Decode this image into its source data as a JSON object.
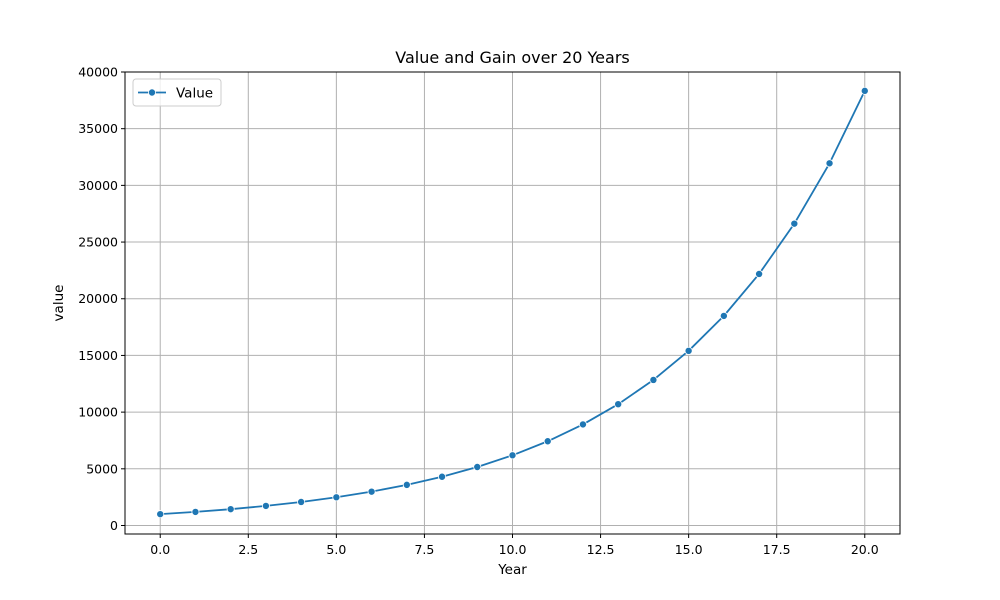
{
  "chart_data": {
    "type": "line",
    "title": "Value and Gain over 20 Years",
    "xlabel": "Year",
    "ylabel": "value",
    "xlim": [
      -1,
      21
    ],
    "ylim": [
      -750,
      40000
    ],
    "xticks": [
      0,
      2.5,
      5,
      7.5,
      10,
      12.5,
      15,
      17.5,
      20
    ],
    "xtick_labels": [
      "0.0",
      "2.5",
      "5.0",
      "7.5",
      "10.0",
      "12.5",
      "15.0",
      "17.5",
      "20.0"
    ],
    "yticks": [
      0,
      5000,
      10000,
      15000,
      20000,
      25000,
      30000,
      35000,
      40000
    ],
    "ytick_labels": [
      "0",
      "5000",
      "10000",
      "15000",
      "20000",
      "25000",
      "30000",
      "35000",
      "40000"
    ],
    "grid": true,
    "legend_position": "top-left",
    "series": [
      {
        "name": "Value",
        "color": "#1f77b4",
        "marker": "circle",
        "x": [
          0,
          1,
          2,
          3,
          4,
          5,
          6,
          7,
          8,
          9,
          10,
          11,
          12,
          13,
          14,
          15,
          16,
          17,
          18,
          19,
          20
        ],
        "values": [
          1000,
          1200,
          1440,
          1728,
          2074,
          2488,
          2986,
          3583,
          4300,
          5160,
          6192,
          7430,
          8916,
          10699,
          12839,
          15407,
          18488,
          22186,
          26623,
          31948,
          38338
        ]
      }
    ]
  }
}
